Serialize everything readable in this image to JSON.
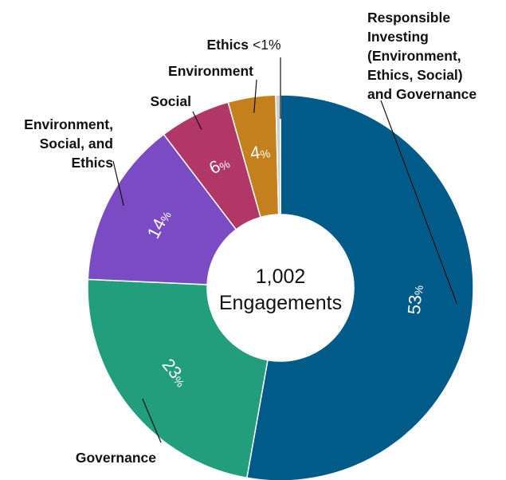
{
  "chart_data": {
    "type": "pie",
    "variant": "donut",
    "center_label": {
      "count": "1,002",
      "text": "Engagements"
    },
    "categories": [
      "Responsible Investing (Environment, Ethics, Social) and Governance",
      "Governance",
      "Environment, Social, and Ethics",
      "Social",
      "Environment",
      "Ethics"
    ],
    "values": [
      53,
      23,
      14,
      6,
      4,
      0.4
    ],
    "value_labels": [
      "53",
      "23",
      "14",
      "6",
      "4",
      "<1%"
    ],
    "percent_symbol": "%",
    "colors": [
      "#005b88",
      "#239e7d",
      "#7a4bc2",
      "#b13866",
      "#c5801e",
      "#cfcfcf"
    ],
    "legend_lines": [
      [
        "Responsible",
        "Investing",
        "(Environment,",
        "Ethics, Social)",
        "and Governance"
      ],
      [
        "Governance"
      ],
      [
        "Environment,",
        "Social, and",
        "Ethics"
      ],
      [
        "Social"
      ],
      [
        "Environment"
      ],
      [
        "Ethics"
      ]
    ]
  }
}
